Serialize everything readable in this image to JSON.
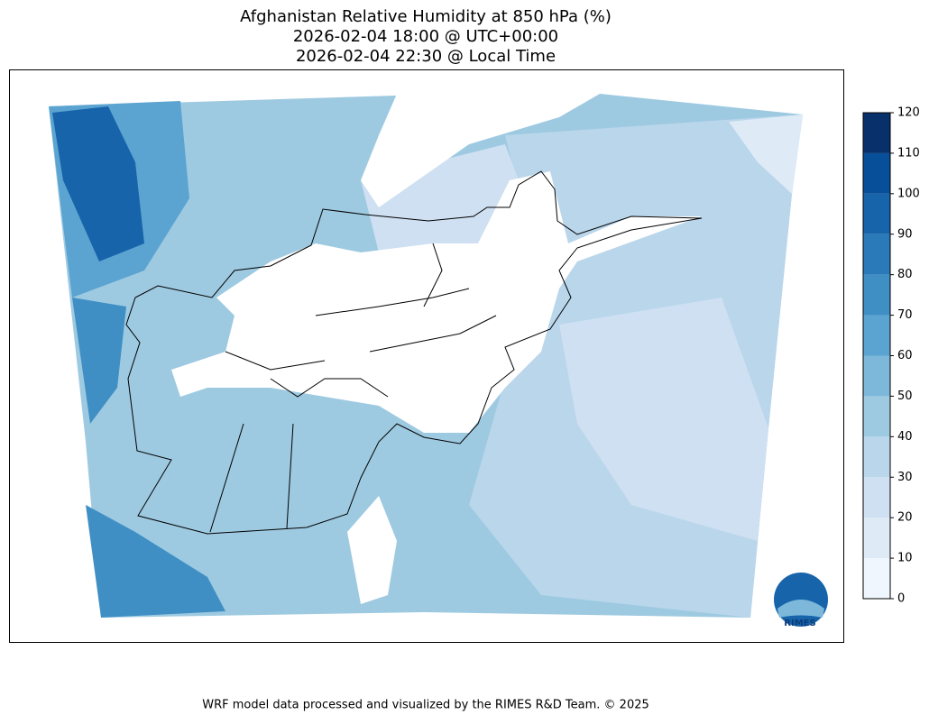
{
  "title": [
    "Afghanistan Relative Humidity at 850 hPa (%)",
    "2026-02-04 18:00 @ UTC+00:00",
    "2026-02-04 22:30 @ Local Time"
  ],
  "colorbar": {
    "ticks": [
      0,
      10,
      20,
      30,
      40,
      50,
      60,
      70,
      80,
      90,
      100,
      110,
      120
    ],
    "colors": [
      "#f0f6fd",
      "#deebf7",
      "#cfe0f2",
      "#bad6eb",
      "#9ecae1",
      "#7db8da",
      "#5ba3d0",
      "#3f8fc5",
      "#2a7ab9",
      "#1764ab",
      "#084f99",
      "#08306b"
    ]
  },
  "logo": "RIMES",
  "footer": "WRF model data processed and visualized by the RIMES R&D Team. © 2025"
}
